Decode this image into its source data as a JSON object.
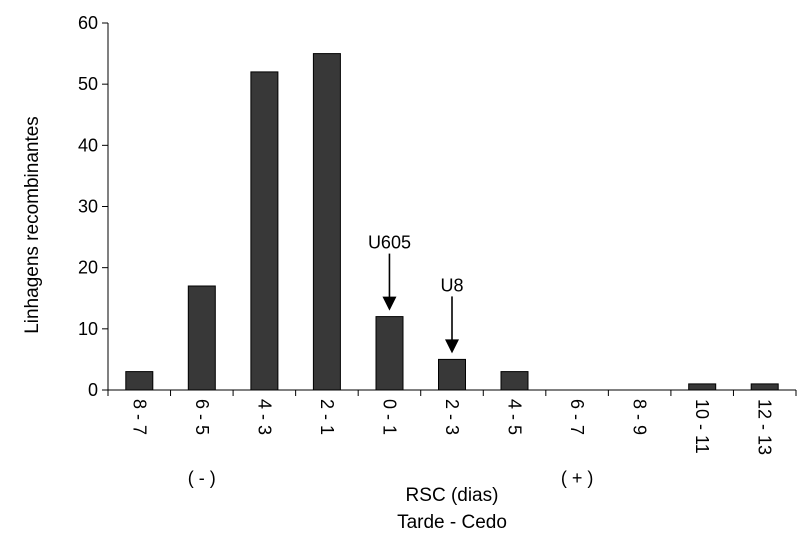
{
  "chart_data": {
    "type": "bar",
    "categories": [
      "8 - 7",
      "6 - 5",
      "4 - 3",
      "2 - 1",
      "0 - 1",
      "2 - 3",
      "4 - 5",
      "6 - 7",
      "8 - 9",
      "10 - 11",
      "12 - 13"
    ],
    "values": [
      3,
      17,
      52,
      55,
      12,
      5,
      3,
      0,
      0,
      1,
      1
    ],
    "ylabel": "Linhagens recombinantes",
    "xlabel": "RSC (dias)",
    "xlabel_sub": "Tarde - Cedo",
    "ylim": [
      0,
      60
    ],
    "yticks": [
      0,
      10,
      20,
      30,
      40,
      50,
      60
    ],
    "grid": false,
    "legend": "none",
    "bar_color": "#383838",
    "direction_labels": [
      {
        "text": "( - )",
        "category": "6 - 5"
      },
      {
        "text": "( + )",
        "category": "6 - 7"
      }
    ],
    "annotations": [
      {
        "text": "U605",
        "category": "0 - 1",
        "arrow": "down"
      },
      {
        "text": "U8",
        "category": "2 - 3",
        "arrow": "down"
      }
    ]
  }
}
